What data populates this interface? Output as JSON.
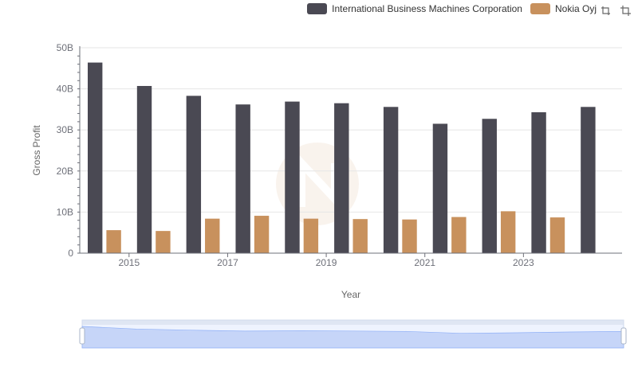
{
  "chart_data": {
    "type": "bar",
    "categories": [
      "2014",
      "2015",
      "2016",
      "2017",
      "2018",
      "2019",
      "2020",
      "2021",
      "2022",
      "2023",
      "2024"
    ],
    "x_tick_labels": [
      "2015",
      "2017",
      "2019",
      "2021",
      "2023"
    ],
    "series": [
      {
        "name": "International Business Machines Corporation",
        "color": "#4a4953",
        "values": [
          46.4,
          40.7,
          38.3,
          36.2,
          36.9,
          36.5,
          35.6,
          31.5,
          32.7,
          34.3,
          35.6
        ]
      },
      {
        "name": "Nokia Oyj",
        "color": "#c8915d",
        "values": [
          5.6,
          5.4,
          8.4,
          9.1,
          8.4,
          8.3,
          8.2,
          8.8,
          10.2,
          8.7,
          null
        ]
      }
    ],
    "xlabel": "Year",
    "ylabel": "Gross Profit",
    "ylim": [
      0,
      50
    ],
    "y_tick_labels": [
      "0",
      "10B",
      "20B",
      "30B",
      "40B",
      "50B"
    ],
    "grid": true,
    "legend": "top-right"
  },
  "icons": {
    "restore": "restore-icon",
    "save": "save-as-image-icon"
  }
}
